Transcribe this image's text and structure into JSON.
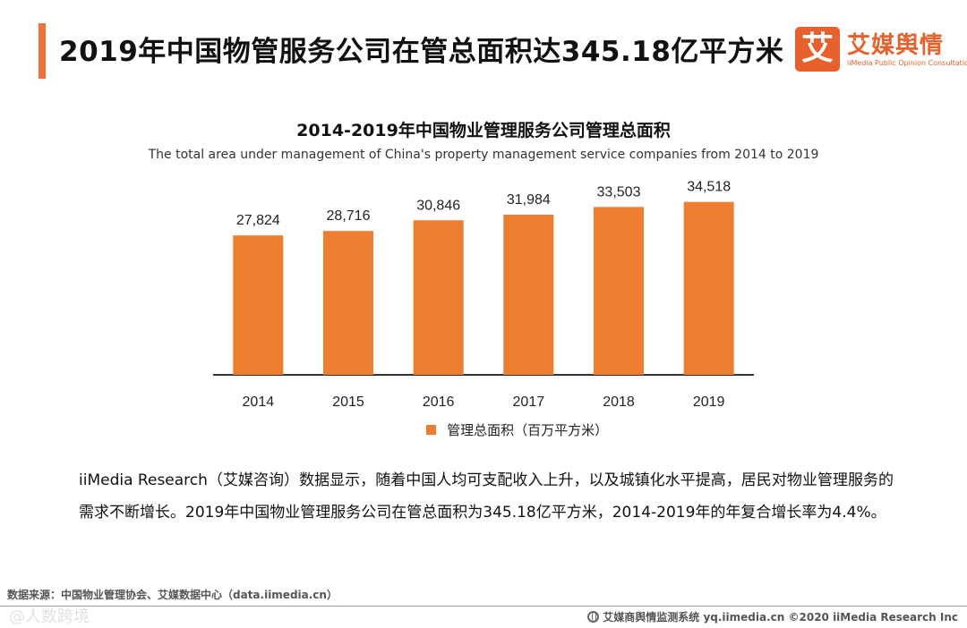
{
  "header": {
    "title": "2019年中国物管服务公司在管总面积达345.18亿平方米"
  },
  "logo": {
    "mark": "艾",
    "name_cn": "艾媒舆情",
    "name_en": "iiMedia Public Opinion Consultation",
    "brand_color": "#e8612c"
  },
  "chart_data": {
    "type": "bar",
    "title": "2014-2019年中国物业管理服务公司管理总面积",
    "subtitle": "The total area under management of China's property management service companies from 2014 to 2019",
    "categories": [
      "2014",
      "2015",
      "2016",
      "2017",
      "2018",
      "2019"
    ],
    "series": [
      {
        "name": "管理总面积（百万平方米）",
        "values": [
          27824,
          28716,
          30846,
          31984,
          33503,
          34518
        ],
        "labels": [
          "27,824",
          "28,716",
          "30,846",
          "31,984",
          "33,503",
          "34,518"
        ],
        "color": "#ed7d31"
      }
    ],
    "xlabel": "",
    "ylabel": "",
    "ylim": [
      0,
      40000
    ],
    "grid": false,
    "legend_position": "bottom"
  },
  "body": {
    "paragraph": "iiMedia Research（艾媒咨询）数据显示，随着中国人均可支配收入上升，以及城镇化水平提高，居民对物业管理服务的需求不断增长。2019年中国物业管理服务公司在管总面积为345.18亿平方米，2014-2019年的年复合增长率为4.4%。"
  },
  "footer": {
    "source": "数据来源：中国物业管理协会、艾媒数据中心（data.iimedia.cn）",
    "watermark": "@人数跨境",
    "right_text": "艾媒商舆情监测系统 yq.iimedia.cn  ©2020  iiMedia Research  Inc",
    "globe_icon": "globe-icon"
  }
}
